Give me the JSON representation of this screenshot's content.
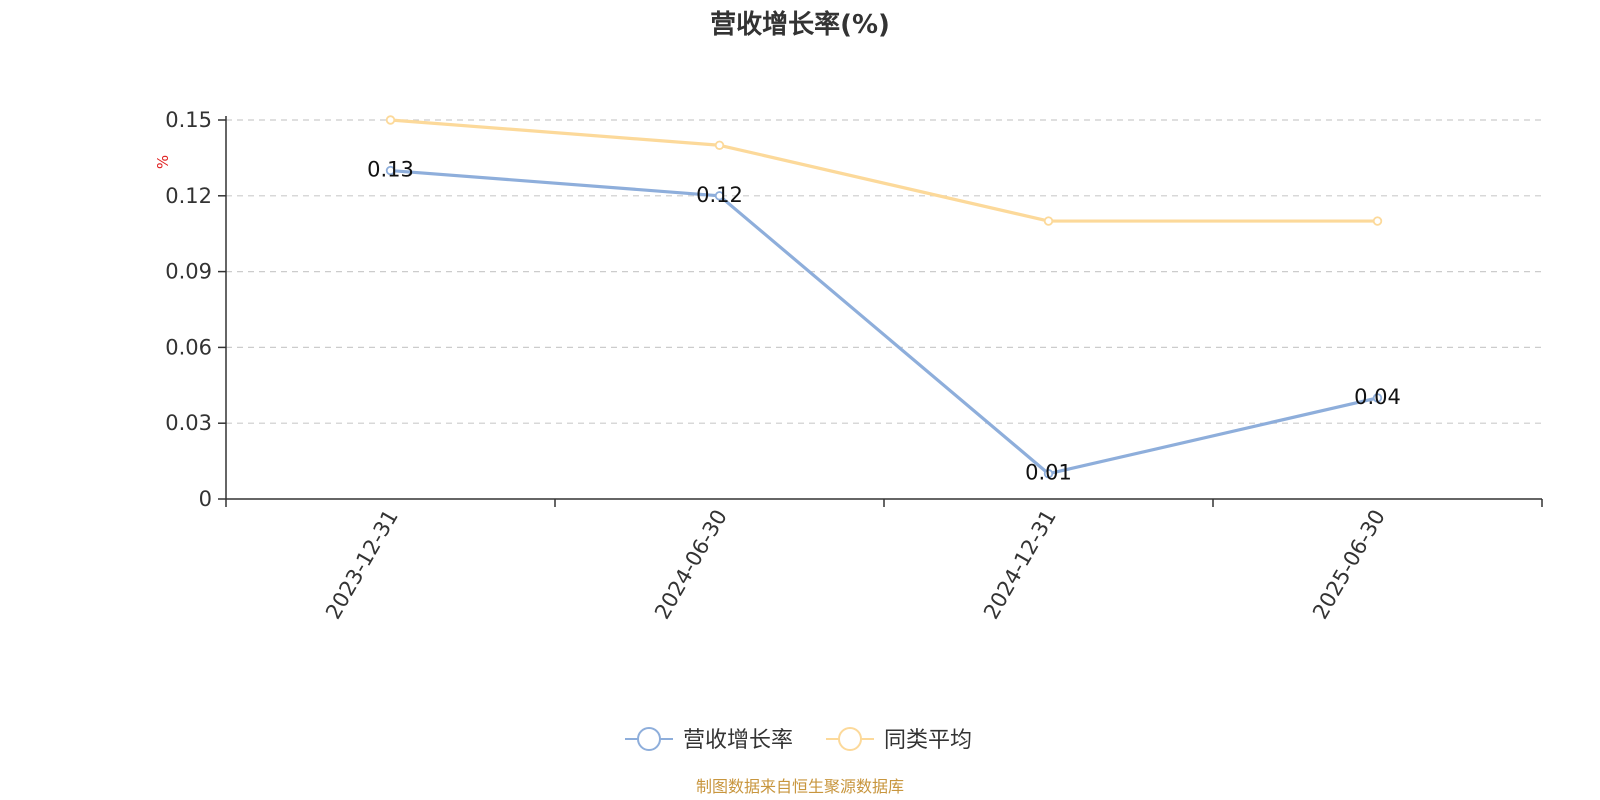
{
  "colors": {
    "series_main": "#8eaedb",
    "series_avg": "#fcd99a",
    "axis": "#333333",
    "grid": "#cccccc",
    "unit": "#e02020",
    "source": "#c8963e"
  },
  "chart_data": {
    "type": "line",
    "title": "营收增长率(%)",
    "ylabel": "%",
    "ylim": [
      0,
      0.15
    ],
    "yticks": [
      0,
      0.03,
      0.06,
      0.09,
      0.12,
      0.15
    ],
    "ytick_labels": [
      "0",
      "0.03",
      "0.06",
      "0.09",
      "0.12",
      "0.15"
    ],
    "categories": [
      "2023-12-31",
      "2024-06-30",
      "2024-12-31",
      "2025-06-30"
    ],
    "grid": true,
    "legend_position": "bottom-center",
    "series": [
      {
        "name": "营收增长率",
        "values": [
          0.13,
          0.12,
          0.01,
          0.04
        ],
        "labels": [
          "0.13",
          "0.12",
          "0.01",
          "0.04"
        ],
        "color": "#8eaedb"
      },
      {
        "name": "同类平均",
        "values": [
          0.15,
          0.14,
          0.11,
          0.11
        ],
        "color": "#fcd99a"
      }
    ]
  },
  "source_text": "制图数据来自恒生聚源数据库"
}
